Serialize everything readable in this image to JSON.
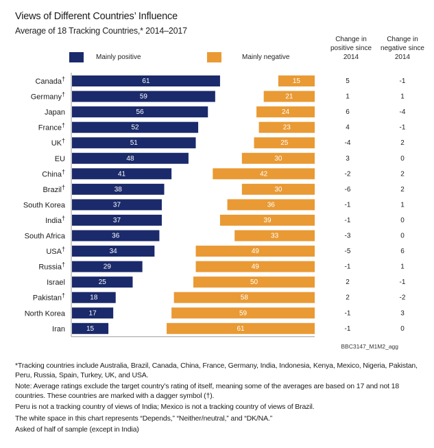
{
  "colors": {
    "positive": "#1b2a6b",
    "negative": "#e99a34",
    "axis": "#999999",
    "bar_label": "#ffffff"
  },
  "chart_data": {
    "type": "bar",
    "orientation": "horizontal",
    "title": "Views of Different Countries’ Influence",
    "subtitle": "Average of 18 Tracking Countries,* 2014–2017",
    "legend": [
      {
        "name": "Mainly positive",
        "color": "#1b2a6b"
      },
      {
        "name": "Mainly negative",
        "color": "#e99a34"
      }
    ],
    "legend_position": "top",
    "categories": [
      "Canada",
      "Germany",
      "Japan",
      "France",
      "UK",
      "EU",
      "China",
      "Brazil",
      "South Korea",
      "India",
      "South Africa",
      "USA",
      "Russia",
      "Israel",
      "Pakistan",
      "North Korea",
      "Iran"
    ],
    "dagger": [
      true,
      true,
      false,
      true,
      true,
      false,
      true,
      true,
      false,
      true,
      false,
      true,
      true,
      false,
      true,
      false,
      false
    ],
    "dagger_symbol": "†",
    "series": [
      {
        "name": "Mainly positive",
        "values": [
          61,
          59,
          56,
          52,
          51,
          48,
          41,
          38,
          37,
          37,
          36,
          34,
          29,
          25,
          18,
          17,
          15
        ]
      },
      {
        "name": "Mainly negative",
        "values": [
          15,
          21,
          24,
          23,
          25,
          30,
          42,
          30,
          36,
          39,
          33,
          49,
          49,
          50,
          58,
          59,
          61
        ]
      }
    ],
    "value_range": [
      0,
      100
    ],
    "grid": false,
    "table_columns": [
      {
        "header": "Change in positive since 2014",
        "header_lines": [
          "Change in",
          "positive since",
          "2014"
        ],
        "values": [
          5,
          1,
          6,
          4,
          -4,
          3,
          -2,
          -6,
          -1,
          -1,
          -3,
          -5,
          -1,
          2,
          2,
          -1,
          -1
        ]
      },
      {
        "header": "Change in negative since 2014",
        "header_lines": [
          "Change in",
          "negative since",
          "2014"
        ],
        "values": [
          -1,
          1,
          -4,
          -1,
          2,
          0,
          2,
          2,
          1,
          0,
          0,
          6,
          1,
          -1,
          -2,
          3,
          0
        ]
      }
    ]
  },
  "source_code": "BBC3147_M1M2_agg",
  "notes": [
    "*Tracking countries include Australia, Brazil, Canada, China, France, Germany, India, Indonesia, Kenya, Mexico, Nigeria, Pakistan, Peru, Russia, Spain, Turkey, UK, and USA.",
    "Note: Average ratings exclude the target country’s rating of itself, meaning some of the averages are based on 17 and not 18 countries. These countries are marked with a dagger symbol (†).",
    "Peru is not a tracking country of views of India; Mexico is not a tracking country of views of Brazil.",
    "The white space in this chart represents “Depends,” “Neither/neutral,” and “DK/NA.”",
    "Asked of half of sample (except in India)"
  ]
}
